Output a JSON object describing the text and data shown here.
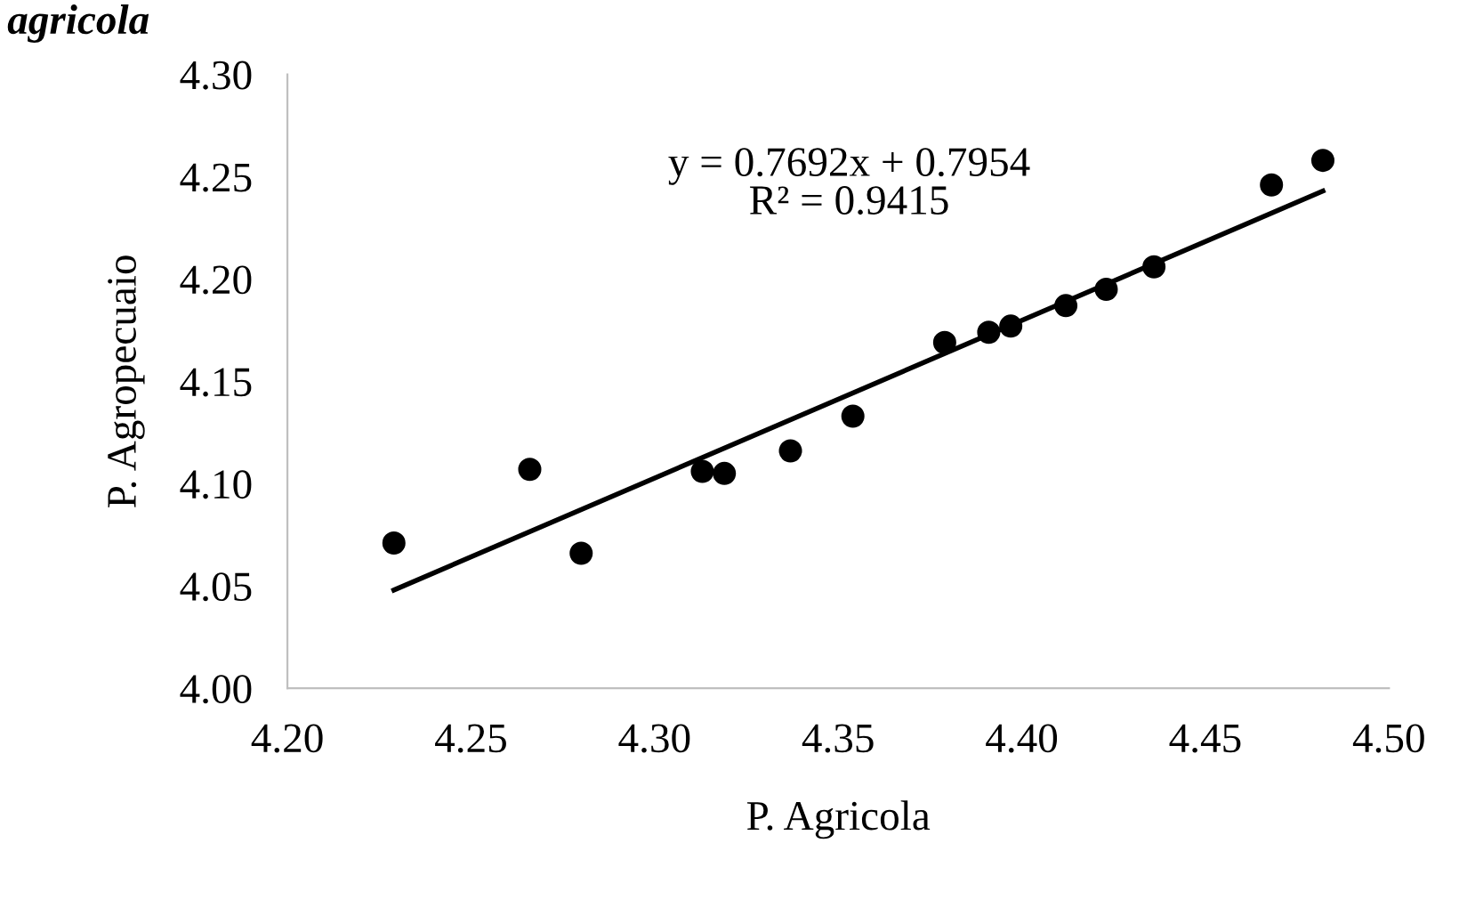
{
  "chart_data": {
    "type": "scatter",
    "title": "agricola",
    "xlabel": "P. Agricola",
    "ylabel": "P. Agropecuaio",
    "annotations": [
      "y = 0.7692x + 0.7954\nR² = 0.9415"
    ],
    "series": [
      {
        "color": "#000000",
        "marker": "circle",
        "x": [
          4.229,
          4.266,
          4.28,
          4.313,
          4.319,
          4.337,
          4.354,
          4.379,
          4.391,
          4.397,
          4.412,
          4.423,
          4.436,
          4.468,
          4.482
        ],
        "values": [
          4.071,
          4.107,
          4.066,
          4.106,
          4.105,
          4.116,
          4.133,
          4.169,
          4.174,
          4.177,
          4.187,
          4.195,
          4.206,
          4.246,
          4.258
        ]
      },
      {
        "type": "line",
        "color": "#000000",
        "x": [
          4.229,
          4.482
        ],
        "values": [
          4.048,
          4.243
        ]
      }
    ],
    "xlim": [
      4.2,
      4.5
    ],
    "ylim": [
      4.0,
      4.3
    ],
    "xticks": [
      {
        "value": 4.2,
        "label": "4.20"
      },
      {
        "value": 4.25,
        "label": "4.25"
      },
      {
        "value": 4.3,
        "label": "4.30"
      },
      {
        "value": 4.35,
        "label": "4.35"
      },
      {
        "value": 4.4,
        "label": "4.40"
      },
      {
        "value": 4.45,
        "label": "4.45"
      },
      {
        "value": 4.5,
        "label": "4.50"
      }
    ],
    "yticks": [
      {
        "value": 4.0,
        "label": "4.00"
      },
      {
        "value": 4.05,
        "label": "4.05"
      },
      {
        "value": 4.1,
        "label": "4.10"
      },
      {
        "value": 4.15,
        "label": "4.15"
      },
      {
        "value": 4.2,
        "label": "4.20"
      },
      {
        "value": 4.25,
        "label": "4.25"
      },
      {
        "value": 4.3,
        "label": "4.30"
      }
    ],
    "grid": false,
    "legend": false
  }
}
